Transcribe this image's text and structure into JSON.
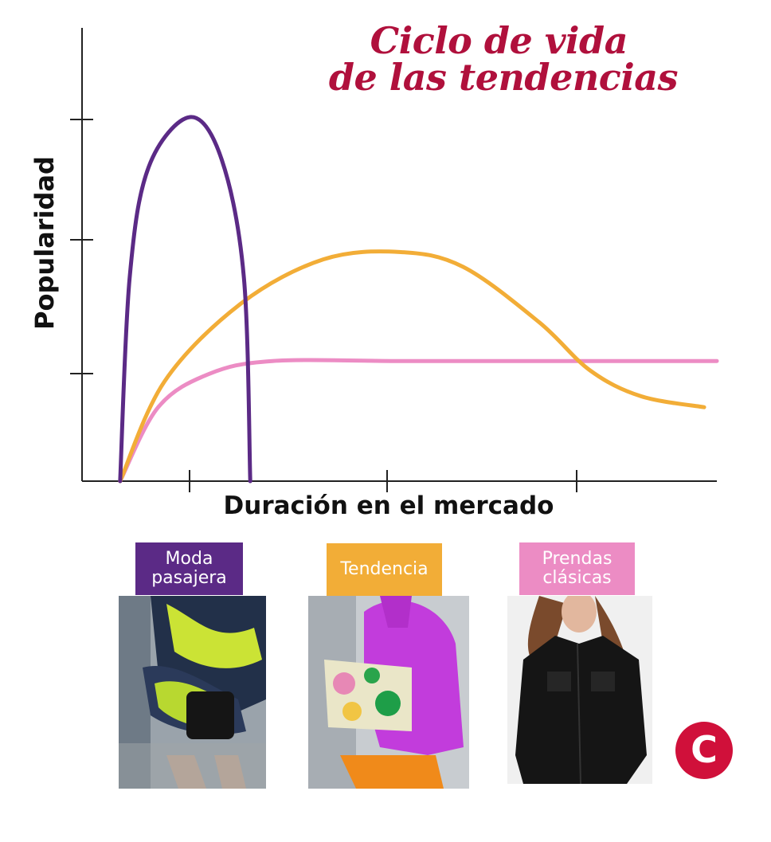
{
  "colors": {
    "title": "#b0103c",
    "fad": "#5b2a86",
    "trend": "#f2ad37",
    "classic": "#ec8cc4",
    "axis": "#222222",
    "logo": "#d0103a"
  },
  "header": {
    "title_line1": "Ciclo de vida",
    "title_line2": "de las tendencias"
  },
  "chart_data": {
    "type": "line",
    "xlabel": "Duración en el mercado",
    "ylabel": "Popularidad",
    "x_ticks": 3,
    "y_ticks": 3,
    "tick_labels": false,
    "grid": false,
    "series": [
      {
        "name": "Moda pasajera",
        "color": "#5b2a86",
        "description_shape": "sharp rise and fall",
        "points": [
          [
            0.06,
            0.0
          ],
          [
            0.075,
            0.55
          ],
          [
            0.105,
            0.85
          ],
          [
            0.17,
            0.985
          ],
          [
            0.22,
            0.87
          ],
          [
            0.255,
            0.55
          ],
          [
            0.265,
            0.0
          ]
        ]
      },
      {
        "name": "Tendencia",
        "color": "#f2ad37",
        "points": [
          [
            0.06,
            0.0
          ],
          [
            0.13,
            0.27
          ],
          [
            0.25,
            0.48
          ],
          [
            0.38,
            0.6
          ],
          [
            0.5,
            0.62
          ],
          [
            0.6,
            0.58
          ],
          [
            0.72,
            0.43
          ],
          [
            0.8,
            0.3
          ],
          [
            0.88,
            0.23
          ],
          [
            0.98,
            0.2
          ]
        ]
      },
      {
        "name": "Prendas clásicas",
        "color": "#ec8cc4",
        "points": [
          [
            0.06,
            0.0
          ],
          [
            0.12,
            0.2
          ],
          [
            0.2,
            0.29
          ],
          [
            0.3,
            0.325
          ],
          [
            0.5,
            0.325
          ],
          [
            0.7,
            0.325
          ],
          [
            1.0,
            0.325
          ]
        ]
      }
    ]
  },
  "legend": [
    {
      "label": "Moda\npasajera",
      "color": "#5b2a86"
    },
    {
      "label": "Tendencia",
      "color": "#f2ad37"
    },
    {
      "label": "Prendas\nclásicas",
      "color": "#ec8cc4"
    }
  ],
  "photos": [
    {
      "subject": "tie-dye handbag outfit"
    },
    {
      "subject": "pink sweater with floral clutch"
    },
    {
      "subject": "black leather shirt"
    }
  ],
  "logo": {
    "letter": "C"
  }
}
